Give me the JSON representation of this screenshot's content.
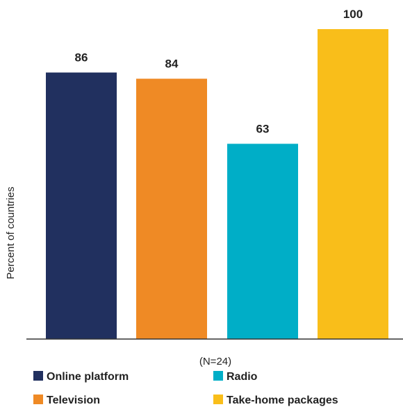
{
  "chart_data": {
    "type": "bar",
    "categories": [
      "Online platform",
      "Television",
      "Radio",
      "Take-home packages"
    ],
    "values": [
      86,
      84,
      63,
      100
    ],
    "colors": [
      "#21305f",
      "#ef8a25",
      "#00aec7",
      "#f9be1a"
    ],
    "title": "",
    "xlabel": "(N=24)",
    "ylabel": "Percent of countries",
    "ylim": [
      0,
      100
    ],
    "grid": false,
    "legend": {
      "position": "bottom",
      "entries": [
        "Online platform",
        "Radio",
        "Television",
        "Take-home packages"
      ]
    }
  }
}
